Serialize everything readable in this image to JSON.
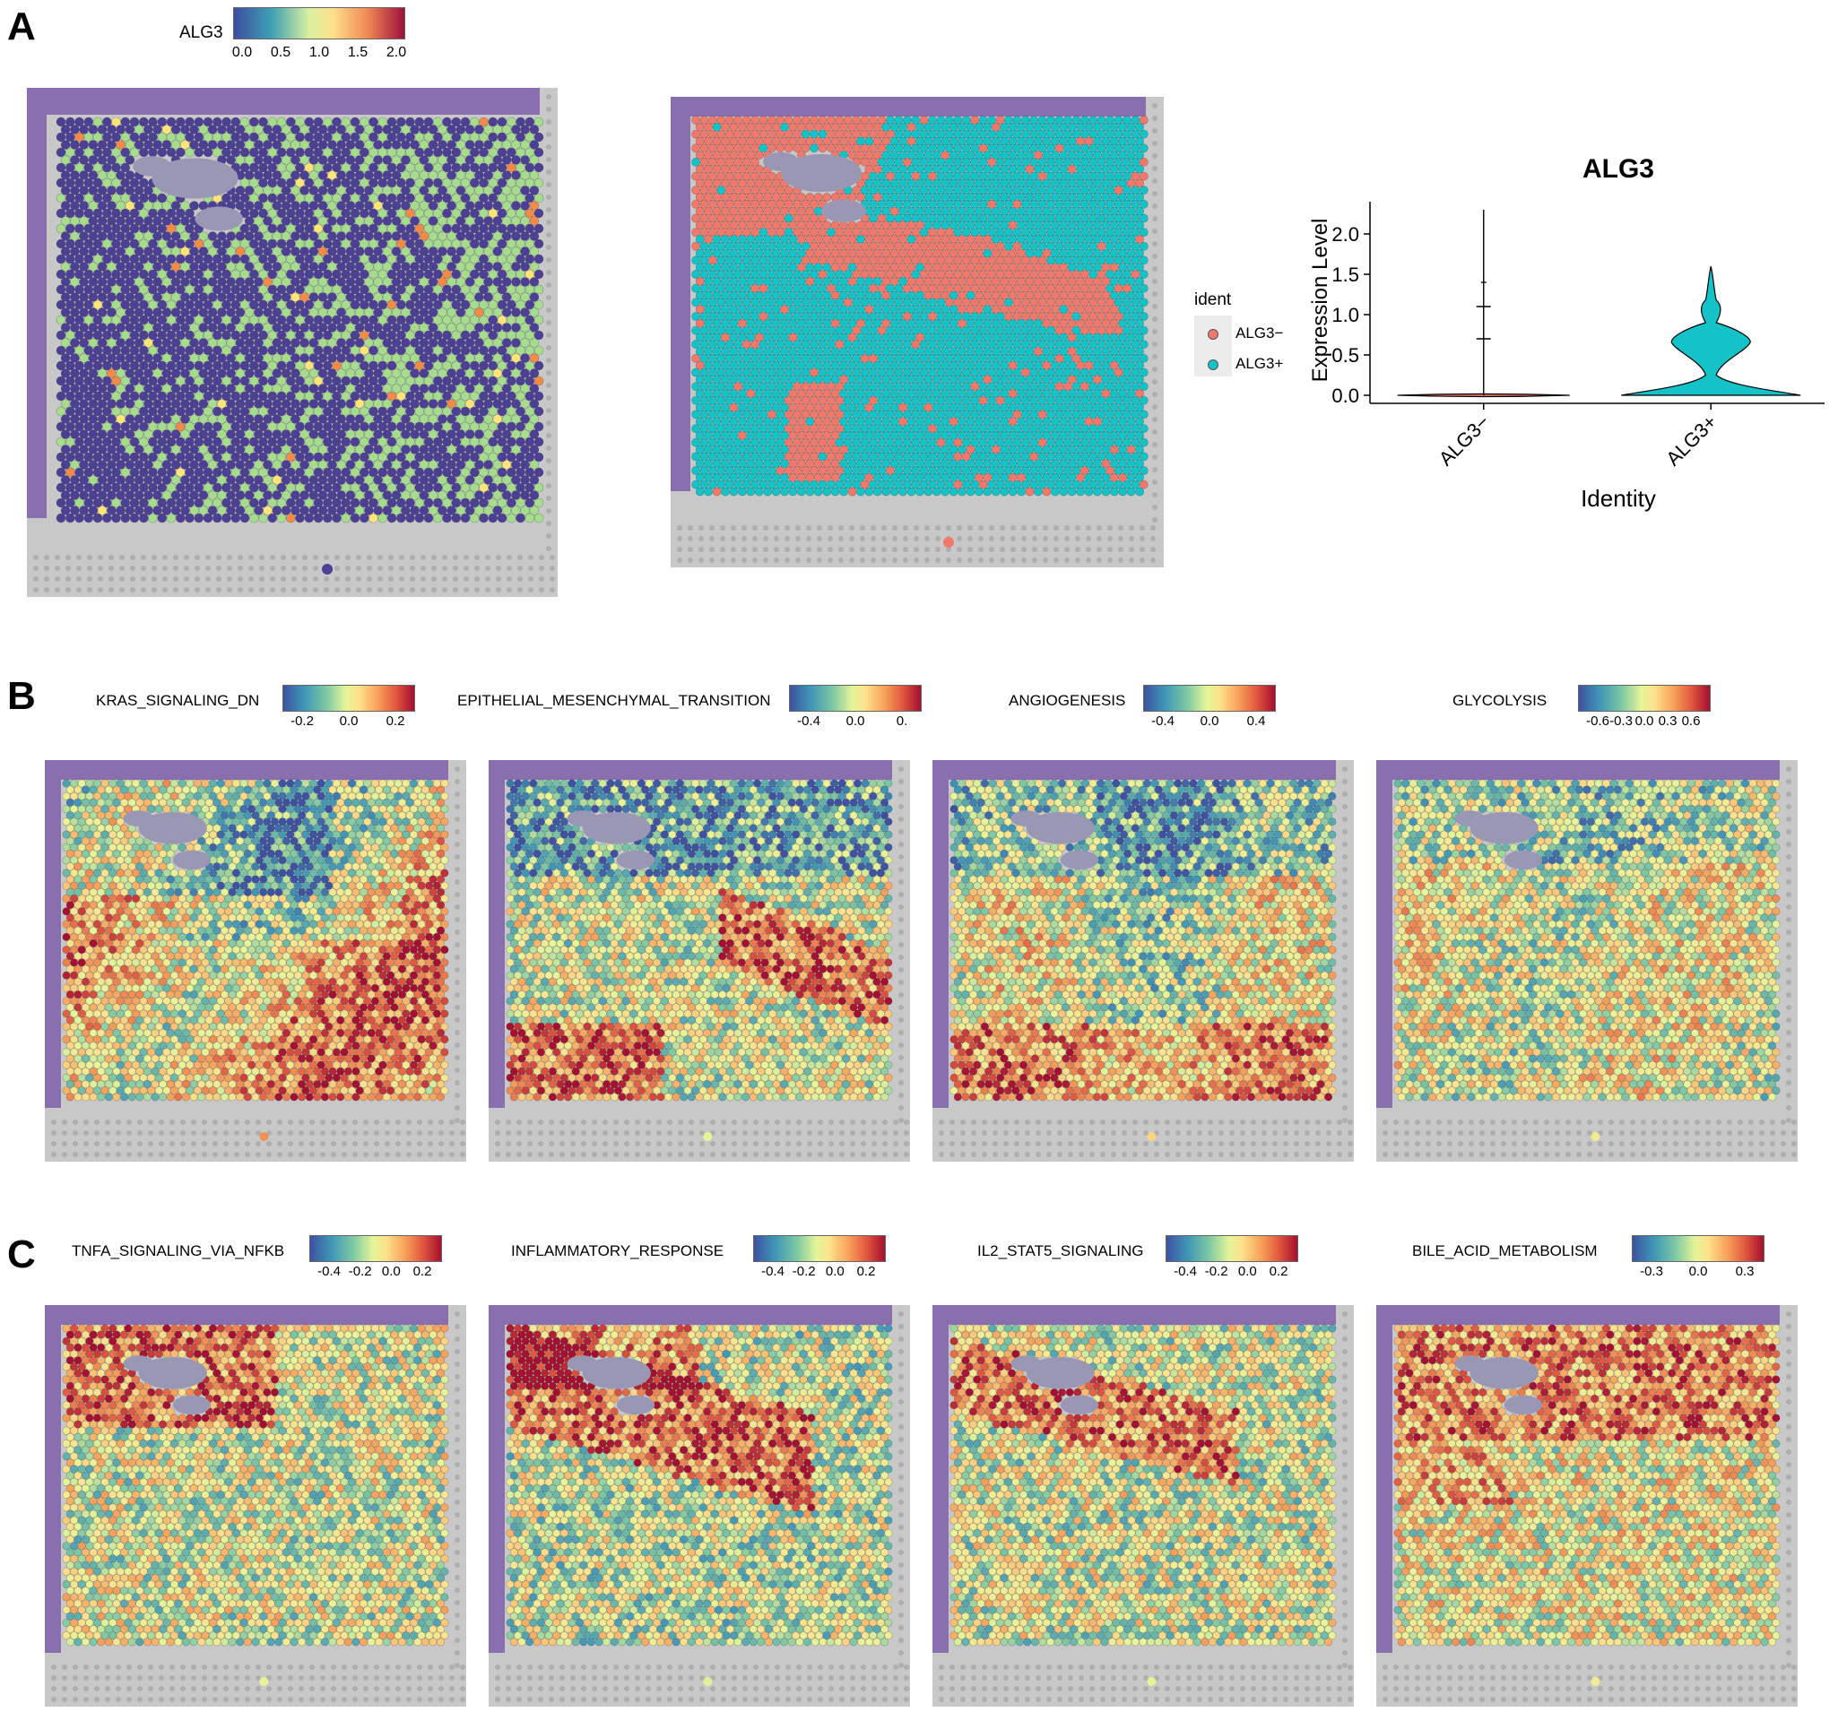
{
  "panels": {
    "A": "A",
    "B": "B",
    "C": "C"
  },
  "panelA": {
    "legend_title": "ALG3",
    "legend_ticks": [
      "0.0",
      "0.5",
      "1.0",
      "1.5",
      "2.0"
    ],
    "ident_title": "ident",
    "ident_items": [
      {
        "label": "ALG3−",
        "color": "#f0796b"
      },
      {
        "label": "ALG3+",
        "color": "#13c3c7"
      }
    ]
  },
  "chart_data": {
    "type": "violin",
    "title": "ALG3",
    "xlabel": "Identity",
    "ylabel": "Expression Level",
    "categories": [
      "ALG3−",
      "ALG3+"
    ],
    "colors": [
      "#f0796b",
      "#13c3c7"
    ],
    "yticks": [
      "0.0",
      "0.5",
      "1.0",
      "1.5",
      "2.0"
    ],
    "ylim": [
      -0.1,
      2.4
    ],
    "series": [
      {
        "max": 2.3,
        "mode": 0.0
      },
      {
        "max": 1.6,
        "mode": 0.0
      }
    ]
  },
  "panelB": [
    {
      "title": "KRAS_SIGNALING_DN",
      "ticks": [
        "-0.2",
        "0.0",
        "0.2"
      ]
    },
    {
      "title": "EPITHELIAL_MESENCHYMAL_TRANSITION",
      "ticks": [
        "-0.4",
        "0.0",
        "0."
      ]
    },
    {
      "title": "ANGIOGENESIS",
      "ticks": [
        "-0.4",
        "0.0",
        "0.4"
      ]
    },
    {
      "title": "GLYCOLYSIS",
      "ticks": [
        "-0.6",
        "-0.3",
        "0.0",
        "0.3",
        "0.6"
      ]
    }
  ],
  "panelC": [
    {
      "title": "TNFA_SIGNALING_VIA_NFKB",
      "ticks": [
        "-0.4",
        "-0.2",
        "0.0",
        "0.2"
      ]
    },
    {
      "title": "INFLAMMATORY_RESPONSE",
      "ticks": [
        "-0.4",
        "-0.2",
        "0.0",
        "0.2"
      ]
    },
    {
      "title": "IL2_STAT5_SIGNALING",
      "ticks": [
        "-0.4",
        "-0.2",
        "0.0",
        "0.2"
      ]
    },
    {
      "title": "BILE_ACID_METABOLISM",
      "ticks": [
        "-0.3",
        "0.0",
        "0.3"
      ]
    }
  ]
}
